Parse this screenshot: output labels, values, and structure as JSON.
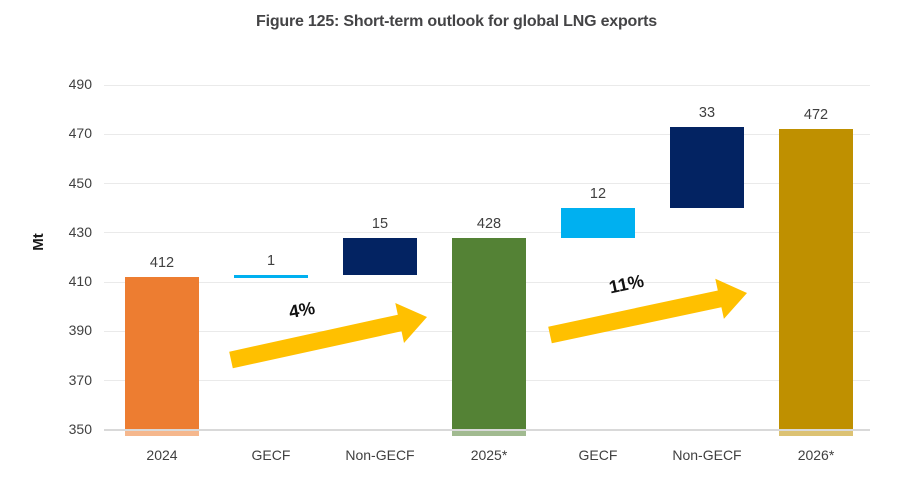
{
  "chart_data": {
    "type": "bar",
    "subtype": "waterfall",
    "title": "Figure 125: Short-term outlook for global LNG exports",
    "xlabel": "",
    "ylabel": "Mt",
    "ylim": [
      350,
      490
    ],
    "yticks": [
      350,
      370,
      390,
      410,
      430,
      450,
      470,
      490
    ],
    "grid": "horizontal",
    "legend": "none",
    "categories": [
      "2024",
      "GECF",
      "Non-GECF",
      "2025*",
      "GECF",
      "Non-GECF",
      "2026*"
    ],
    "bars": [
      {
        "category": "2024",
        "value": 412,
        "label": "412",
        "base": 350,
        "top": 412,
        "color_key": "orange",
        "total": true
      },
      {
        "category": "GECF",
        "value": 1,
        "label": "1",
        "base": 412,
        "top": 413,
        "color_key": "light_blue",
        "total": false
      },
      {
        "category": "Non-GECF",
        "value": 15,
        "label": "15",
        "base": 413,
        "top": 428,
        "color_key": "navy",
        "total": false
      },
      {
        "category": "2025*",
        "value": 428,
        "label": "428",
        "base": 350,
        "top": 428,
        "color_key": "green",
        "total": true
      },
      {
        "category": "GECF",
        "value": 12,
        "label": "12",
        "base": 428,
        "top": 440,
        "color_key": "light_blue",
        "total": false
      },
      {
        "category": "Non-GECF",
        "value": 33,
        "label": "33",
        "base": 440,
        "top": 473,
        "color_key": "navy",
        "total": false
      },
      {
        "category": "2026*",
        "value": 472,
        "label": "472",
        "base": 350,
        "top": 472,
        "color_key": "gold",
        "total": true
      }
    ],
    "annotations": [
      {
        "label": "4%",
        "from_category": "2024",
        "to_category": "2025*"
      },
      {
        "label": "11%",
        "from_category": "2025*",
        "to_category": "2026*"
      }
    ],
    "colors": {
      "orange": "#ED7D31",
      "light_blue": "#00B0F0",
      "navy": "#032362",
      "green": "#548235",
      "gold": "#BF9000",
      "arrow": "#FFC000",
      "gridline": "#EAEAEA",
      "baseline": "#D9D9D9",
      "text": "#404040"
    }
  }
}
